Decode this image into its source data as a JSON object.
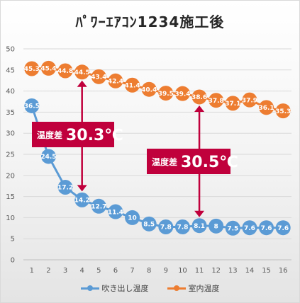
{
  "chart_data": {
    "type": "line",
    "title": "ﾊﾟﾜｰｴｱｺﾝ1234施工後",
    "x": [
      1,
      2,
      3,
      4,
      5,
      6,
      7,
      8,
      9,
      10,
      11,
      12,
      13,
      14,
      15,
      16
    ],
    "ylim": [
      0,
      50
    ],
    "yticks": [
      0,
      5,
      10,
      15,
      20,
      25,
      30,
      35,
      40,
      45,
      50
    ],
    "grid": true,
    "legend_position": "bottom",
    "series": [
      {
        "name": "吹き出し温度",
        "color": "#5b9bd5",
        "values": [
          36.5,
          24.5,
          17.2,
          14.2,
          12.7,
          11.4,
          10,
          8.5,
          7.8,
          7.8,
          8.1,
          8,
          7.5,
          7.6,
          7.6,
          7.6
        ]
      },
      {
        "name": "室内温度",
        "color": "#ed7d31",
        "values": [
          45.3,
          45.4,
          44.8,
          44.5,
          43.4,
          42.4,
          41.4,
          40.4,
          39.5,
          39.4,
          38.6,
          37.8,
          37.1,
          37.9,
          36.1,
          35.3
        ]
      }
    ],
    "annotations": [
      {
        "label": "温度差",
        "value": "30.3℃",
        "x": 4,
        "y_top": 44.5,
        "y_bottom": 14.2
      },
      {
        "label": "温度差",
        "value": "30.5℃",
        "x": 11,
        "y_top": 38.6,
        "y_bottom": 8.1
      }
    ],
    "annotation_color": "#c0003c"
  }
}
